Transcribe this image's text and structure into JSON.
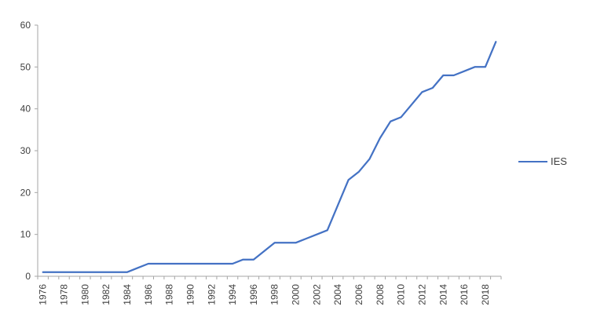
{
  "chart_data": {
    "type": "line",
    "x": [
      1976,
      1977,
      1978,
      1979,
      1980,
      1981,
      1982,
      1983,
      1984,
      1985,
      1986,
      1987,
      1988,
      1989,
      1990,
      1991,
      1992,
      1993,
      1994,
      1995,
      1996,
      1997,
      1998,
      1999,
      2000,
      2001,
      2002,
      2003,
      2004,
      2005,
      2006,
      2007,
      2008,
      2009,
      2010,
      2011,
      2012,
      2013,
      2014,
      2015,
      2016,
      2017,
      2018,
      2019
    ],
    "series": [
      {
        "name": "IES",
        "color": "#4472C4",
        "values": [
          1,
          1,
          1,
          1,
          1,
          1,
          1,
          1,
          1,
          2,
          3,
          3,
          3,
          3,
          3,
          3,
          3,
          3,
          3,
          4,
          4,
          6,
          8,
          8,
          8,
          9,
          10,
          11,
          17,
          23,
          25,
          28,
          33,
          37,
          38,
          41,
          44,
          45,
          48,
          48,
          49,
          50,
          50,
          56
        ]
      }
    ],
    "title": "",
    "xlabel": "",
    "ylabel": "",
    "ylim": [
      0,
      60
    ],
    "ytick_step": 10,
    "ytick_labels": [
      "0",
      "10",
      "20",
      "30",
      "40",
      "50",
      "60"
    ],
    "xtick_label_every": 2,
    "xtick_labels_shown": [
      "1976",
      "1978",
      "1980",
      "1982",
      "1984",
      "1986",
      "1988",
      "1990",
      "1992",
      "1994",
      "1996",
      "1998",
      "2000",
      "2002",
      "2004",
      "2006",
      "2008",
      "2010",
      "2012",
      "2014",
      "2016",
      "2018"
    ],
    "grid": false,
    "legend_position": "right",
    "legend": {
      "label": "IES"
    },
    "colors": {
      "line": "#4472C4",
      "axis": "#A6A6A6",
      "tick": "#A6A6A6",
      "label": "#3f3f3f",
      "background": "#ffffff"
    }
  }
}
